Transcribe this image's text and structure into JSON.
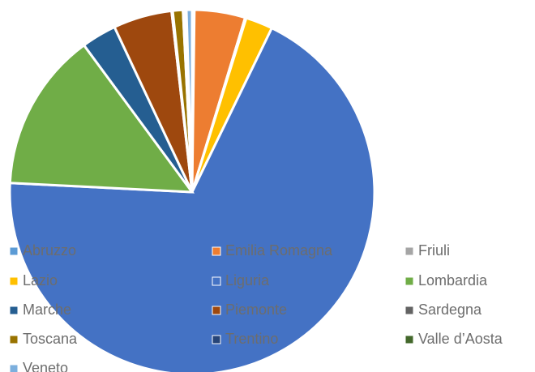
{
  "chart_data": {
    "type": "pie",
    "categories": [
      "Abruzzo",
      "Emilia Romagna",
      "Friuli",
      "Lazio",
      "Liguria",
      "Lombardia",
      "Marche",
      "Piemonte",
      "Sardegna",
      "Toscana",
      "Trentino",
      "Valle d’Aosta",
      "Veneto"
    ],
    "values": [
      0.2,
      4.5,
      0.1,
      2.4,
      68.6,
      14.1,
      3.1,
      5.2,
      0.1,
      0.9,
      0.2,
      0.1,
      0.5
    ],
    "colors": [
      "#5b9bd5",
      "#ed7d31",
      "#a5a5a5",
      "#ffc000",
      "#4472c4",
      "#70ad47",
      "#255e91",
      "#9e480e",
      "#636363",
      "#997300",
      "#264478",
      "#43682b",
      "#7cafdd"
    ],
    "legend": "bottom"
  }
}
